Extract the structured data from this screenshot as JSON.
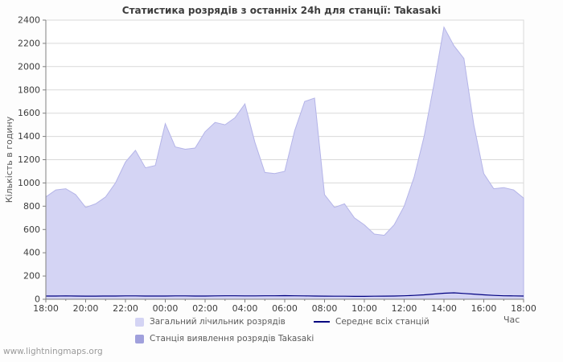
{
  "watermark": "www.lightningmaps.org",
  "chart_data": {
    "type": "area",
    "title": "Статистика розрядів з останніх 24h для станції: Takasaki",
    "xlabel": "Час",
    "ylabel": "Кількість в годину",
    "ylim": [
      0,
      2400
    ],
    "grid": "horizontal",
    "legend_position": "bottom",
    "y_ticks": [
      0,
      200,
      400,
      600,
      800,
      1000,
      1200,
      1400,
      1600,
      1800,
      2000,
      2200,
      2400
    ],
    "y_tick_labels": [
      "0",
      "200",
      "400",
      "600",
      "800",
      "1000",
      "1200",
      "1400",
      "1600",
      "1800",
      "2000",
      "2200",
      "2400"
    ],
    "x_tick_labels": [
      "18:00",
      "20:00",
      "22:00",
      "00:00",
      "02:00",
      "04:00",
      "06:00",
      "08:00",
      "10:00",
      "12:00",
      "14:00",
      "16:00",
      "18:00"
    ],
    "x_hours": [
      0,
      0.5,
      1,
      1.5,
      2,
      2.5,
      3,
      3.5,
      4,
      4.5,
      5,
      5.5,
      6,
      6.5,
      7,
      7.5,
      8,
      8.5,
      9,
      9.5,
      10,
      10.5,
      11,
      11.5,
      12,
      12.5,
      13,
      13.5,
      14,
      14.5,
      15,
      15.5,
      16,
      16.5,
      17,
      17.5,
      18,
      18.5,
      19,
      19.5,
      20,
      20.5,
      21,
      21.5,
      22,
      22.5,
      23,
      23.5,
      24
    ],
    "colors": {
      "area_fill": "#d4d4f4",
      "area_stroke": "#b4b4e8",
      "avg_line": "#000080",
      "station_fill": "#a0a0dc",
      "grid": "#d9d9d9",
      "axis": "#808080",
      "tick_text": "#3d3d3d"
    },
    "series": [
      {
        "name": "Загальний лічильник розрядів",
        "type": "area",
        "color": "#d4d4f4",
        "values": [
          880,
          940,
          950,
          900,
          790,
          820,
          880,
          1000,
          1180,
          1280,
          1130,
          1150,
          1510,
          1310,
          1290,
          1300,
          1440,
          1520,
          1500,
          1560,
          1680,
          1350,
          1090,
          1080,
          1100,
          1450,
          1700,
          1730,
          900,
          790,
          820,
          700,
          640,
          560,
          550,
          640,
          800,
          1050,
          1400,
          1850,
          2340,
          2180,
          2070,
          1500,
          1080,
          950,
          960,
          940,
          870
        ]
      },
      {
        "name": "Середнє всіх станцій",
        "type": "line",
        "color": "#000080",
        "values": [
          28,
          28,
          29,
          28,
          27,
          27,
          28,
          28,
          29,
          29,
          28,
          28,
          28,
          29,
          29,
          28,
          28,
          29,
          30,
          30,
          29,
          29,
          30,
          30,
          31,
          30,
          29,
          28,
          27,
          26,
          26,
          25,
          25,
          26,
          27,
          28,
          30,
          33,
          38,
          45,
          52,
          55,
          50,
          44,
          38,
          33,
          30,
          29,
          28
        ]
      },
      {
        "name": "Станція виявлення розрядів Takasaki",
        "type": "area",
        "color": "#a0a0dc",
        "values": []
      }
    ]
  }
}
